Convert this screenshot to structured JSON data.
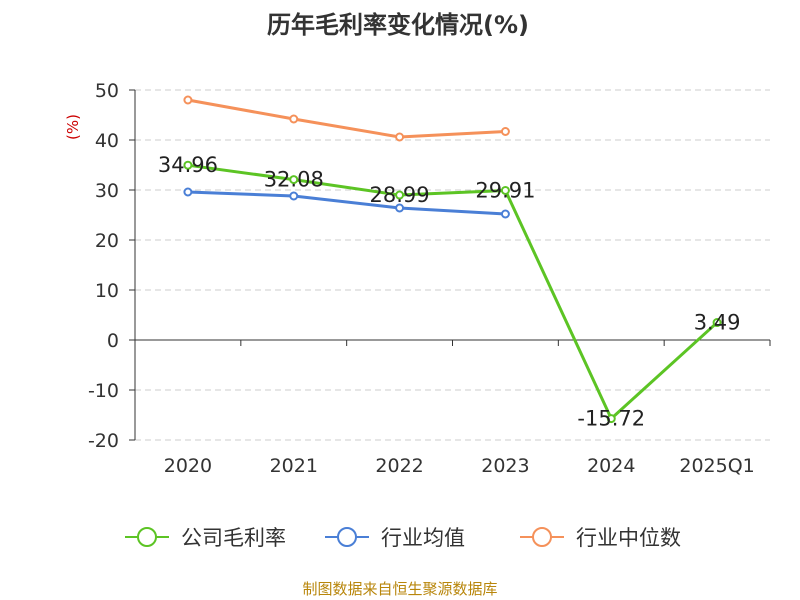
{
  "chart_data": {
    "type": "line",
    "title": "历年毛利率变化情况(%)",
    "ylabel": "(%)",
    "xlabel": "",
    "categories": [
      "2020",
      "2021",
      "2022",
      "2023",
      "2024",
      "2025Q1"
    ],
    "ylim": [
      -20,
      50
    ],
    "yticks": [
      "50",
      "40",
      "30",
      "20",
      "10",
      "0",
      "-10",
      "-20"
    ],
    "grid": true,
    "legend_position": "bottom",
    "series": [
      {
        "name": "公司毛利率",
        "color": "#5cc424",
        "values": [
          34.96,
          32.08,
          28.99,
          29.91,
          -15.72,
          3.49
        ],
        "labels": [
          "34.96",
          "32.08",
          "28.99",
          "29.91",
          "-15.72",
          "3.49"
        ]
      },
      {
        "name": "行业均值",
        "color": "#4a7fd6",
        "values": [
          29.6,
          28.8,
          26.4,
          25.2,
          null,
          null
        ]
      },
      {
        "name": "行业中位数",
        "color": "#f5915a",
        "values": [
          48.0,
          44.2,
          40.6,
          41.7,
          null,
          null
        ]
      }
    ]
  },
  "source": "制图数据来自恒生聚源数据库"
}
